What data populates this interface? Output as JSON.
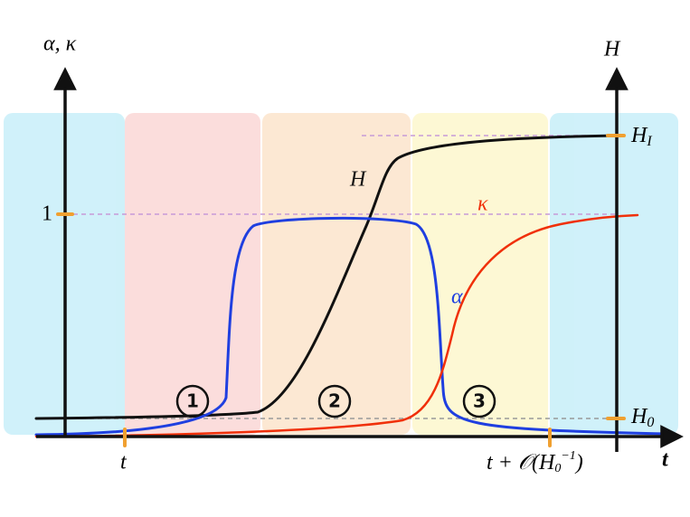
{
  "left_axis": {
    "label": "α, κ",
    "tick": "1"
  },
  "right_axis": {
    "label": "H",
    "ticks": [
      {
        "base": "H",
        "subscript": "I"
      },
      {
        "base": "H",
        "subscript": "0"
      }
    ]
  },
  "time_axis": {
    "label": "t",
    "ticks": [
      "t",
      "t + 𝒪(H",
      "0",
      "−1",
      ")"
    ]
  },
  "curves": [
    {
      "label": "H"
    },
    {
      "label": "κ"
    },
    {
      "label": "α"
    }
  ],
  "stages": [
    "1",
    "2",
    "3"
  ]
}
